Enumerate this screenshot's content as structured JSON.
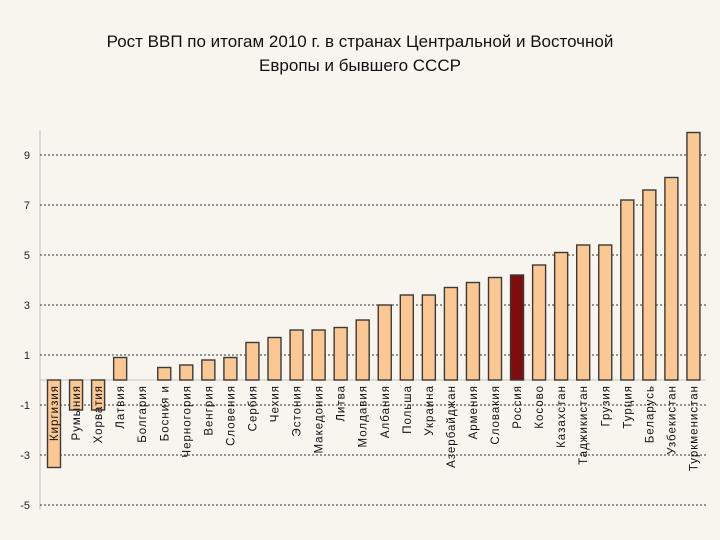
{
  "title_line1": "Рост ВВП по итогам 2010 г. в странах Центральной и Восточной",
  "title_line2": "Европы и бывшего СССР",
  "chart_data": {
    "type": "bar",
    "title": "Рост ВВП по итогам 2010 г. в странах Центральной и Восточной Европы и бывшего СССР",
    "xlabel": "",
    "ylabel": "",
    "ylim": [
      -5,
      10
    ],
    "yticks": [
      9,
      7,
      5,
      3,
      1,
      -1,
      -3,
      -5
    ],
    "ytick_labels": [
      "9",
      "7",
      "5",
      "3",
      "1",
      "-1",
      "-3",
      "-5"
    ],
    "grid": true,
    "legend": "none",
    "colors": {
      "bar": "#fbc793",
      "highlight": "#7f0d0d",
      "gridline": "#333333",
      "baseline": "#cfcfcf"
    },
    "categories": [
      "Киргизия",
      "Румыния",
      "Хорватия",
      "Латвия",
      "Болгария",
      "Босния и",
      "Черногория",
      "Венгрия",
      "Словения",
      "Сербия",
      "Чехия",
      "Эстония",
      "Македония",
      "Литва",
      "Молдавия",
      "Албания",
      "Польша",
      "Украина",
      "Азербайджан",
      "Армения",
      "Словакия",
      "Россия",
      "Косово",
      "Казахстан",
      "Таджикистан",
      "Грузия",
      "Турция",
      "Беларусь",
      "Узбекистан",
      "Туркменистан"
    ],
    "values": [
      -3.5,
      -1.2,
      -1.2,
      0.9,
      0.0,
      0.5,
      0.6,
      0.8,
      0.9,
      1.5,
      1.7,
      2.0,
      2.0,
      2.1,
      2.4,
      3.0,
      3.4,
      3.4,
      3.7,
      3.9,
      4.1,
      4.2,
      4.6,
      5.1,
      5.4,
      5.4,
      7.2,
      7.6,
      8.1,
      9.9
    ],
    "highlight_category": "Россия"
  }
}
